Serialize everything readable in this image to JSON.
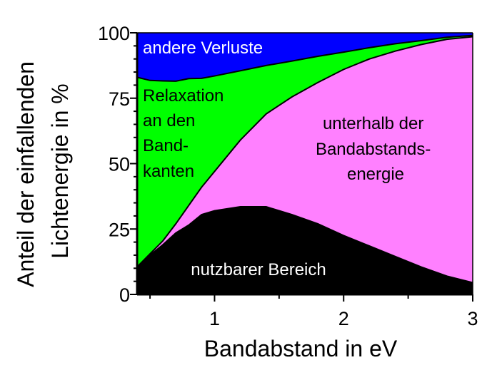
{
  "chart_data": {
    "type": "area",
    "stacked": true,
    "xlabel": "Bandabstand in eV",
    "ylabel": [
      "Anteil der einfallenden",
      "Lichtenergie in %"
    ],
    "xlim": [
      0.4,
      3
    ],
    "ylim": [
      0,
      100
    ],
    "xticks": [
      1,
      2,
      3
    ],
    "yticks": [
      0,
      25,
      50,
      75,
      100
    ],
    "grid": false,
    "x": [
      0.4,
      0.5,
      0.6,
      0.7,
      0.8,
      0.9,
      1.0,
      1.2,
      1.4,
      1.6,
      1.8,
      2.0,
      2.2,
      2.4,
      2.6,
      2.8,
      3.0
    ],
    "series": [
      {
        "name": "nutzbarer Bereich",
        "color": "#000000",
        "label_color": "#ffffff",
        "values": [
          10,
          15,
          19,
          23.5,
          26.5,
          30.5,
          32,
          33.5,
          33.5,
          30.5,
          27,
          22.5,
          18.5,
          14.5,
          10.5,
          7,
          4.5
        ]
      },
      {
        "name": "unterhalb der Bandabstands- energie",
        "label_lines": [
          "unterhalb der",
          "Bandabstands-",
          "energie"
        ],
        "color": "#ff80ff",
        "label_color": "#000000",
        "values": [
          0.5,
          0.5,
          1.5,
          3.5,
          7.5,
          10.5,
          15,
          25.5,
          35.5,
          45,
          54,
          63.5,
          71.5,
          78.5,
          85,
          90.5,
          94
        ]
      },
      {
        "name": "Relaxation an den Band- kanten",
        "label_lines": [
          "Relaxation",
          "an den",
          "Band-",
          "kanten"
        ],
        "color": "#00ff00",
        "label_color": "#000000",
        "values": [
          72.5,
          66.3,
          61.1,
          54.5,
          48.5,
          41.6,
          36.5,
          26.5,
          18.5,
          13.7,
          10,
          6.6,
          4.3,
          2.8,
          1.5,
          0.8,
          0.5
        ]
      },
      {
        "name": "andere Verluste",
        "color": "#0000ff",
        "label_color": "#ffffff",
        "values": [
          17,
          18.2,
          18.4,
          18.5,
          17.5,
          17.4,
          16.5,
          14.5,
          12.5,
          10.8,
          9,
          7.4,
          5.7,
          4.2,
          3,
          1.7,
          1
        ]
      }
    ]
  }
}
